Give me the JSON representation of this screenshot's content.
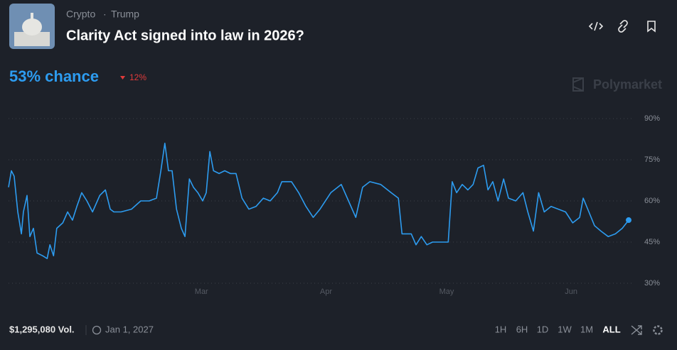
{
  "header": {
    "category": "Crypto",
    "separator": "·",
    "tag": "Trump",
    "title": "Clarity Act signed into law in 2026?"
  },
  "chance": {
    "label": "53% chance",
    "change": "12%"
  },
  "watermark": "Polymarket",
  "footer": {
    "volume": "$1,295,080 Vol.",
    "end_date": "Jan 1, 2027",
    "ranges": [
      "1H",
      "6H",
      "1D",
      "1W",
      "1M",
      "ALL"
    ]
  },
  "chart_data": {
    "type": "line",
    "color": "#2d9cf0",
    "grid": true,
    "x": [
      0,
      0.7,
      1.4,
      2.3,
      3.2,
      3.7,
      4.6,
      5.3,
      6.2,
      7.1,
      8.5,
      9.6,
      10.3,
      11.2,
      12.0,
      13.5,
      14.7,
      15.9,
      17.0,
      18.2,
      19.5,
      20.9,
      22.7,
      24.1,
      25.3,
      26.2,
      28.0,
      30.6,
      32.9,
      35.0,
      36.8,
      37.9,
      38.9,
      39.8,
      40.7,
      41.8,
      43.0,
      43.9,
      45.0,
      46.0,
      47.1,
      48.3,
      49.2,
      50.1,
      51.0,
      52.4,
      53.8,
      55.2,
      56.6,
      58.1,
      59.8,
      61.6,
      63.4,
      65.1,
      66.9,
      68.0,
      70.4,
      72.2,
      74.0,
      75.8,
      77.5,
      80.2,
      82.8,
      84.6,
      86.4,
      88.1,
      89.9,
      92.6,
      95.2,
      97.0,
      97.9,
      100.2,
      101.4,
      102.7,
      104.1,
      105.5,
      107.6,
      109.4,
      110.4,
      111.5,
      112.9,
      114.3,
      115.6,
      116.8,
      118.2,
      119.3,
      120.5,
      121.8,
      123.2,
      124.4,
      126.2,
      128.0,
      129.2,
      130.6,
      131.9,
      133.3,
      135.0,
      136.8,
      138.6,
      140.4,
      142.1,
      143.0,
      144.4,
      145.8,
      147.4,
      149.2,
      151.0,
      152.7,
      154.3
    ],
    "values": [
      65,
      71,
      69,
      56,
      48,
      56,
      62,
      47,
      50,
      41,
      40,
      39,
      44,
      40,
      50,
      52,
      56,
      53,
      58,
      63,
      60,
      56,
      62,
      64,
      57,
      56,
      56,
      57,
      60,
      60,
      61,
      71,
      81,
      71,
      71,
      57,
      50,
      47,
      68,
      65,
      63,
      60,
      63,
      78,
      71,
      70,
      71,
      70,
      70,
      61,
      57,
      58,
      61,
      60,
      63,
      67,
      67,
      63,
      58,
      54,
      57,
      63,
      66,
      60,
      54,
      65,
      67,
      66,
      63,
      61,
      48,
      48,
      44,
      47,
      44,
      45,
      45,
      45,
      67,
      63,
      66,
      64,
      66,
      72,
      73,
      64,
      67,
      60,
      68,
      61,
      60,
      63,
      56,
      49,
      63,
      56,
      58,
      57,
      56,
      52,
      54,
      61,
      56,
      51,
      49,
      47,
      48,
      50,
      53
    ],
    "xlim": [
      0,
      154.3
    ],
    "xticks": [
      {
        "value": 48,
        "label": "Mar"
      },
      {
        "value": 79,
        "label": "Apr"
      },
      {
        "value": 109,
        "label": "May"
      },
      {
        "value": 140,
        "label": "Jun"
      }
    ],
    "ylim": [
      23,
      97
    ],
    "yticks": [
      {
        "value": 90,
        "label": "90%"
      },
      {
        "value": 75,
        "label": "75%"
      },
      {
        "value": 60,
        "label": "60%"
      },
      {
        "value": 45,
        "label": "45%"
      },
      {
        "value": 30,
        "label": "30%"
      }
    ]
  }
}
